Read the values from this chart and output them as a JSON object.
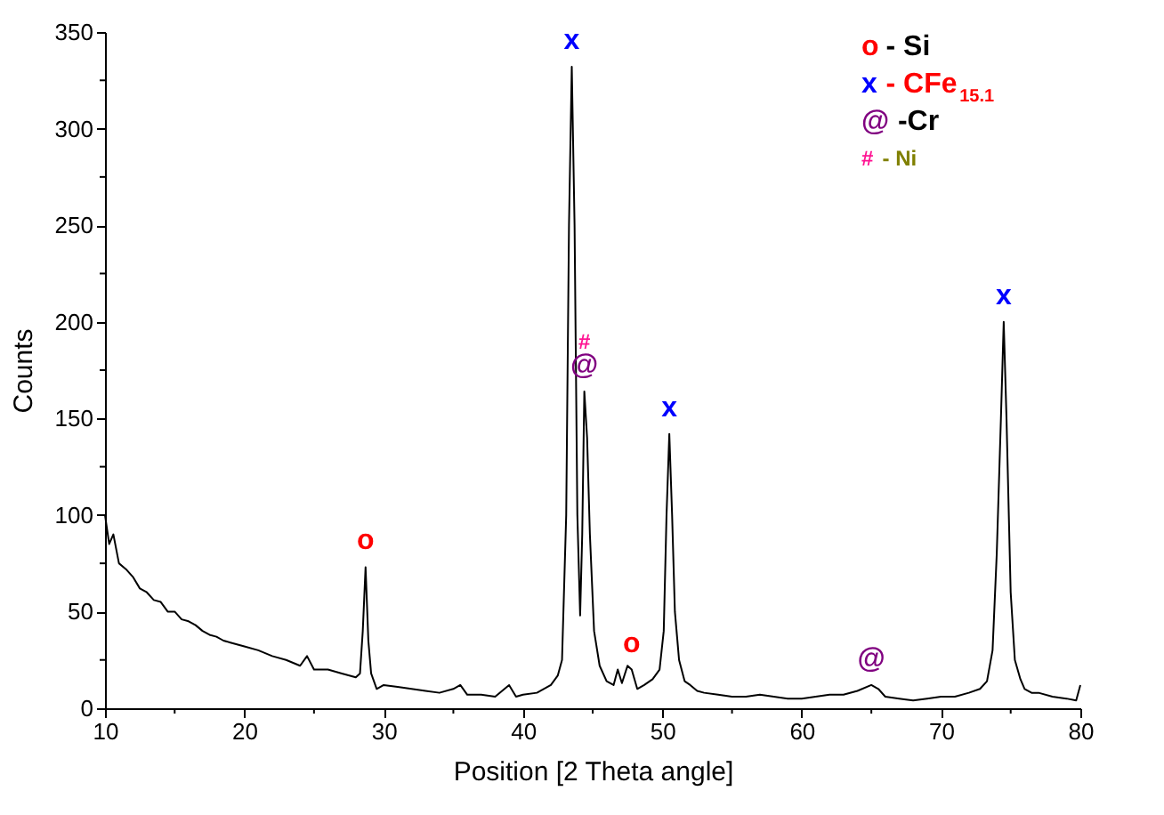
{
  "chart_data": {
    "type": "line",
    "xlabel": "Position [2 Theta angle]",
    "ylabel": "Counts",
    "xlim": [
      10,
      80
    ],
    "ylim": [
      0,
      350
    ],
    "xticks": [
      10,
      {
        "value": 15,
        "label": null
      },
      20,
      {
        "value": 25,
        "label": null
      },
      30,
      {
        "value": 35,
        "label": null
      },
      40,
      {
        "value": 45,
        "label": null
      },
      50,
      {
        "value": 55,
        "label": null
      },
      60,
      {
        "value": 65,
        "label": null
      },
      70,
      {
        "value": 75,
        "label": null
      },
      80
    ],
    "yticks": [
      0,
      {
        "value": 25,
        "label": null
      },
      50,
      {
        "value": 75,
        "label": null
      },
      100,
      {
        "value": 125,
        "label": null
      },
      150,
      {
        "value": 175,
        "label": null
      },
      200,
      {
        "value": 225,
        "label": null
      },
      250,
      {
        "value": 275,
        "label": null
      },
      300,
      {
        "value": 325,
        "label": null
      },
      350
    ],
    "grid": false,
    "legend": false,
    "marker": "none",
    "line_style": "solid",
    "series": [
      {
        "color": "#000000",
        "x": [
          10,
          10.3,
          10.6,
          11,
          11.5,
          12,
          12.5,
          13,
          13.5,
          14,
          14.5,
          15,
          15.5,
          16,
          16.5,
          17,
          17.5,
          18,
          18.5,
          19,
          20,
          21,
          22,
          23,
          24,
          24.5,
          25,
          26,
          27,
          28,
          28.3,
          28.5,
          28.7,
          28.9,
          29.1,
          29.5,
          30,
          31,
          32,
          33,
          34,
          35,
          35.5,
          36,
          37,
          38,
          39,
          39.5,
          40,
          41,
          42,
          42.5,
          42.8,
          43.1,
          43.3,
          43.5,
          43.7,
          43.9,
          44.1,
          44.25,
          44.4,
          44.6,
          44.8,
          45.1,
          45.5,
          46,
          46.5,
          46.8,
          47.1,
          47.5,
          47.8,
          48.2,
          48.7,
          49.3,
          49.8,
          50.1,
          50.3,
          50.5,
          50.7,
          50.9,
          51.2,
          51.6,
          52,
          52.5,
          53,
          54,
          55,
          56,
          57,
          58,
          59,
          60,
          61,
          62,
          63,
          64,
          65,
          65.5,
          66,
          67,
          68,
          69,
          70,
          71,
          72,
          72.8,
          73.3,
          73.7,
          74,
          74.3,
          74.5,
          74.7,
          75,
          75.3,
          75.7,
          76,
          76.5,
          77,
          78,
          79,
          79.7,
          80
        ],
        "values": [
          100,
          85,
          90,
          75,
          72,
          68,
          62,
          60,
          56,
          55,
          50,
          50,
          46,
          45,
          43,
          40,
          38,
          37,
          35,
          34,
          32,
          30,
          27,
          25,
          22,
          27,
          20,
          20,
          18,
          16,
          18,
          40,
          73,
          35,
          18,
          10,
          12,
          11,
          10,
          9,
          8,
          10,
          12,
          7,
          7,
          6,
          12,
          6,
          7,
          8,
          12,
          17,
          25,
          100,
          250,
          332,
          250,
          100,
          48,
          90,
          164,
          140,
          90,
          40,
          22,
          14,
          12,
          20,
          13,
          22,
          20,
          10,
          12,
          15,
          20,
          40,
          100,
          142,
          100,
          50,
          25,
          14,
          12,
          9,
          8,
          7,
          6,
          6,
          7,
          6,
          5,
          5,
          6,
          7,
          7,
          9,
          12,
          10,
          6,
          5,
          4,
          5,
          6,
          6,
          8,
          10,
          14,
          30,
          80,
          150,
          200,
          150,
          60,
          25,
          15,
          10,
          8,
          8,
          6,
          5,
          4,
          12
        ]
      }
    ],
    "annotations": [
      "o - Si",
      "x - CFe$_{15.1}$",
      "@ -Cr",
      "# - Ni",
      {
        "text": "o",
        "x": 28.7,
        "y": 73
      },
      {
        "text": "x",
        "x": 43.5,
        "y": 332
      },
      {
        "text": "@",
        "x": 44.4,
        "y": 164
      },
      {
        "text": "#",
        "x": 44.4,
        "y": 164
      },
      {
        "text": "o",
        "x": 47.8,
        "y": 20
      },
      {
        "text": "x",
        "x": 50.5,
        "y": 142
      },
      {
        "text": "@",
        "x": 65,
        "y": 12
      },
      {
        "text": "x",
        "x": 74.5,
        "y": 200
      }
    ]
  }
}
